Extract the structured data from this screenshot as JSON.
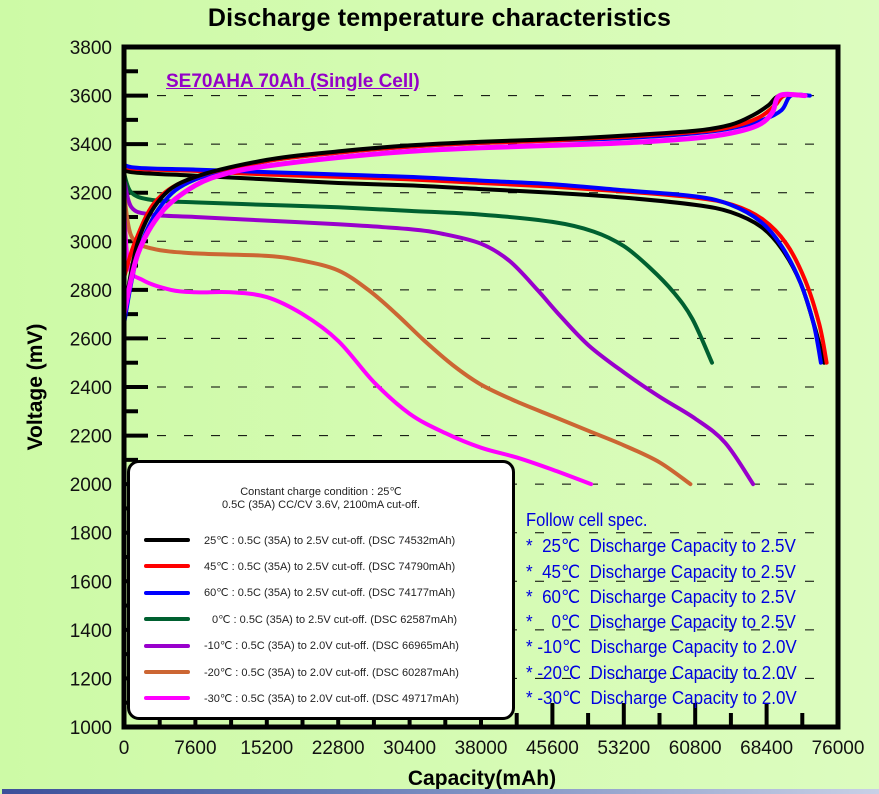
{
  "header": {
    "title": "Discharge temperature characteristics"
  },
  "chart_data": {
    "type": "line",
    "title": "Discharge temperature characteristics",
    "subtitle": "SE70AHA 70Ah (Single Cell)",
    "xlabel": "Capacity(mAh)",
    "ylabel": "Voltage (mV)",
    "xlim": [
      0,
      76000
    ],
    "ylim": [
      1000,
      3800
    ],
    "grid": "horizontal dashed",
    "x_ticks": [
      "0",
      "7600",
      "15200",
      "22800",
      "30400",
      "38000",
      "45600",
      "53200",
      "60800",
      "68400",
      "76000"
    ],
    "y_ticks": [
      "1000",
      "1200",
      "1400",
      "1600",
      "1800",
      "2000",
      "2200",
      "2400",
      "2600",
      "2800",
      "3000",
      "3200",
      "3400",
      "3600",
      "3800"
    ],
    "x_tick_values": [
      0,
      7600,
      15200,
      22800,
      30400,
      38000,
      45600,
      53200,
      60800,
      68400,
      76000
    ],
    "y_tick_values": [
      1000,
      1200,
      1400,
      1600,
      1800,
      2000,
      2200,
      2400,
      2600,
      2800,
      3000,
      3200,
      3400,
      3600,
      3800
    ],
    "legend_position": "bottom-left",
    "legend_header": [
      "Constant charge condition : 25℃",
      "0.5C (35A) CC/CV 3.6V, 2100mA cut-off."
    ],
    "series": [
      {
        "name": "25℃ : 0.5C (35A) to 2.5V cut-off. (DSC 74532mAh)",
        "color": "#000000",
        "charge": [
          [
            0,
            2700
          ],
          [
            1500,
            3000
          ],
          [
            4000,
            3180
          ],
          [
            7600,
            3265
          ],
          [
            15200,
            3335
          ],
          [
            22800,
            3370
          ],
          [
            30400,
            3395
          ],
          [
            38000,
            3410
          ],
          [
            45600,
            3420
          ],
          [
            53200,
            3435
          ],
          [
            60800,
            3455
          ],
          [
            64600,
            3480
          ],
          [
            67000,
            3520
          ],
          [
            68600,
            3560
          ],
          [
            69800,
            3600
          ],
          [
            72500,
            3600
          ]
        ],
        "discharge": [
          [
            0,
            3310
          ],
          [
            800,
            3285
          ],
          [
            7600,
            3270
          ],
          [
            15200,
            3255
          ],
          [
            22800,
            3240
          ],
          [
            30400,
            3230
          ],
          [
            38000,
            3215
          ],
          [
            45600,
            3200
          ],
          [
            53200,
            3180
          ],
          [
            60800,
            3150
          ],
          [
            64600,
            3120
          ],
          [
            67800,
            3060
          ],
          [
            70000,
            2970
          ],
          [
            72000,
            2830
          ],
          [
            73500,
            2650
          ],
          [
            74532,
            2500
          ]
        ]
      },
      {
        "name": "45℃ : 0.5C (35A) to 2.5V cut-off. (DSC 74790mAh)",
        "color": "#ff0000",
        "charge": [
          [
            0,
            2850
          ],
          [
            1200,
            3000
          ],
          [
            3500,
            3170
          ],
          [
            7600,
            3265
          ],
          [
            15200,
            3330
          ],
          [
            22800,
            3365
          ],
          [
            30400,
            3390
          ],
          [
            38000,
            3405
          ],
          [
            45600,
            3415
          ],
          [
            53200,
            3430
          ],
          [
            60800,
            3450
          ],
          [
            64600,
            3470
          ],
          [
            67600,
            3510
          ],
          [
            69300,
            3560
          ],
          [
            70300,
            3600
          ],
          [
            72500,
            3600
          ]
        ],
        "discharge": [
          [
            0,
            3330
          ],
          [
            800,
            3300
          ],
          [
            7600,
            3290
          ],
          [
            15200,
            3275
          ],
          [
            22800,
            3265
          ],
          [
            30400,
            3255
          ],
          [
            38000,
            3240
          ],
          [
            45600,
            3225
          ],
          [
            53200,
            3205
          ],
          [
            60800,
            3180
          ],
          [
            64800,
            3150
          ],
          [
            68000,
            3090
          ],
          [
            70500,
            2990
          ],
          [
            72500,
            2840
          ],
          [
            74000,
            2660
          ],
          [
            74790,
            2500
          ]
        ]
      },
      {
        "name": "60℃ : 0.5C (35A) to 2.5V cut-off. (DSC 74177mAh)",
        "color": "#0000ff",
        "charge": [
          [
            0,
            2660
          ],
          [
            1500,
            2950
          ],
          [
            4000,
            3150
          ],
          [
            7600,
            3255
          ],
          [
            15200,
            3330
          ],
          [
            22800,
            3365
          ],
          [
            30400,
            3390
          ],
          [
            38000,
            3405
          ],
          [
            45600,
            3415
          ],
          [
            53200,
            3425
          ],
          [
            60800,
            3445
          ],
          [
            64600,
            3465
          ],
          [
            68000,
            3500
          ],
          [
            70000,
            3540
          ],
          [
            71000,
            3600
          ],
          [
            73000,
            3600
          ]
        ],
        "discharge": [
          [
            0,
            3340
          ],
          [
            800,
            3305
          ],
          [
            7600,
            3295
          ],
          [
            15200,
            3285
          ],
          [
            22800,
            3275
          ],
          [
            30400,
            3265
          ],
          [
            38000,
            3250
          ],
          [
            45600,
            3235
          ],
          [
            53200,
            3210
          ],
          [
            60800,
            3185
          ],
          [
            64600,
            3150
          ],
          [
            67800,
            3080
          ],
          [
            70000,
            2980
          ],
          [
            72000,
            2830
          ],
          [
            73400,
            2660
          ],
          [
            74177,
            2500
          ]
        ]
      },
      {
        "name": "0℃ : 0.5C (35A) to 2.5V cut-off. (DSC 62587mAh)",
        "color": "#006030",
        "charge": [],
        "discharge": [
          [
            0,
            3280
          ],
          [
            800,
            3200
          ],
          [
            3000,
            3170
          ],
          [
            7600,
            3160
          ],
          [
            15200,
            3150
          ],
          [
            22800,
            3140
          ],
          [
            30400,
            3125
          ],
          [
            38000,
            3110
          ],
          [
            45600,
            3080
          ],
          [
            50000,
            3040
          ],
          [
            53200,
            2980
          ],
          [
            56000,
            2890
          ],
          [
            58500,
            2790
          ],
          [
            60500,
            2680
          ],
          [
            62587,
            2500
          ]
        ]
      },
      {
        "name": "-10℃ : 0.5C (35A) to 2.0V cut-off. (DSC 66965mAh)",
        "color": "#9900cc",
        "charge": [],
        "discharge": [
          [
            0,
            3260
          ],
          [
            800,
            3140
          ],
          [
            3000,
            3110
          ],
          [
            7600,
            3100
          ],
          [
            15200,
            3085
          ],
          [
            22800,
            3070
          ],
          [
            30400,
            3050
          ],
          [
            34000,
            3030
          ],
          [
            38000,
            2990
          ],
          [
            41000,
            2920
          ],
          [
            44000,
            2800
          ],
          [
            46500,
            2690
          ],
          [
            49500,
            2570
          ],
          [
            53200,
            2460
          ],
          [
            57000,
            2360
          ],
          [
            60800,
            2270
          ],
          [
            64000,
            2170
          ],
          [
            66965,
            2000
          ]
        ]
      },
      {
        "name": "-20℃ : 0.5C (35A) to 2.0V cut-off. (DSC 60287mAh)",
        "color": "#cc6633",
        "charge": [],
        "discharge": [
          [
            0,
            3200
          ],
          [
            800,
            3020
          ],
          [
            3000,
            2970
          ],
          [
            7600,
            2950
          ],
          [
            15200,
            2940
          ],
          [
            19000,
            2920
          ],
          [
            22800,
            2880
          ],
          [
            26000,
            2800
          ],
          [
            29000,
            2700
          ],
          [
            32000,
            2590
          ],
          [
            35000,
            2490
          ],
          [
            38000,
            2410
          ],
          [
            41800,
            2340
          ],
          [
            45600,
            2280
          ],
          [
            49400,
            2220
          ],
          [
            53200,
            2160
          ],
          [
            57000,
            2090
          ],
          [
            60287,
            2000
          ]
        ]
      },
      {
        "name": "-30℃ : 0.5C (35A) to 2.0V cut-off. (DSC 49717mAh)",
        "color": "#ff00ff",
        "charge": [
          [
            0,
            2700
          ],
          [
            1500,
            2950
          ],
          [
            4000,
            3120
          ],
          [
            7600,
            3230
          ],
          [
            11000,
            3280
          ],
          [
            15200,
            3310
          ],
          [
            22800,
            3345
          ],
          [
            30400,
            3370
          ],
          [
            38000,
            3385
          ],
          [
            45600,
            3395
          ],
          [
            53200,
            3405
          ],
          [
            60800,
            3425
          ],
          [
            64600,
            3445
          ],
          [
            67600,
            3480
          ],
          [
            69000,
            3530
          ],
          [
            69800,
            3600
          ],
          [
            72500,
            3600
          ]
        ],
        "discharge": [
          [
            0,
            3150
          ],
          [
            500,
            2900
          ],
          [
            2000,
            2840
          ],
          [
            5000,
            2800
          ],
          [
            7600,
            2790
          ],
          [
            11400,
            2790
          ],
          [
            15200,
            2770
          ],
          [
            19000,
            2700
          ],
          [
            22800,
            2590
          ],
          [
            26600,
            2420
          ],
          [
            30400,
            2290
          ],
          [
            34200,
            2210
          ],
          [
            38000,
            2150
          ],
          [
            41800,
            2110
          ],
          [
            45600,
            2060
          ],
          [
            49717,
            2000
          ]
        ]
      }
    ],
    "annotations": {
      "spec_title": "Follow cell spec.",
      "spec_lines": [
        "*  25℃  Discharge Capacity to 2.5V",
        "*  45℃  Discharge Capacity to 2.5V",
        "*  60℃  Discharge Capacity to 2.5V",
        "*    0℃  Discharge Capacity to 2.5V",
        "* -10℃  Discharge Capacity to 2.0V",
        "* -20℃  Discharge Capacity to 2.0V",
        "* -30℃  Discharge Capacity to 2.0V"
      ]
    }
  }
}
